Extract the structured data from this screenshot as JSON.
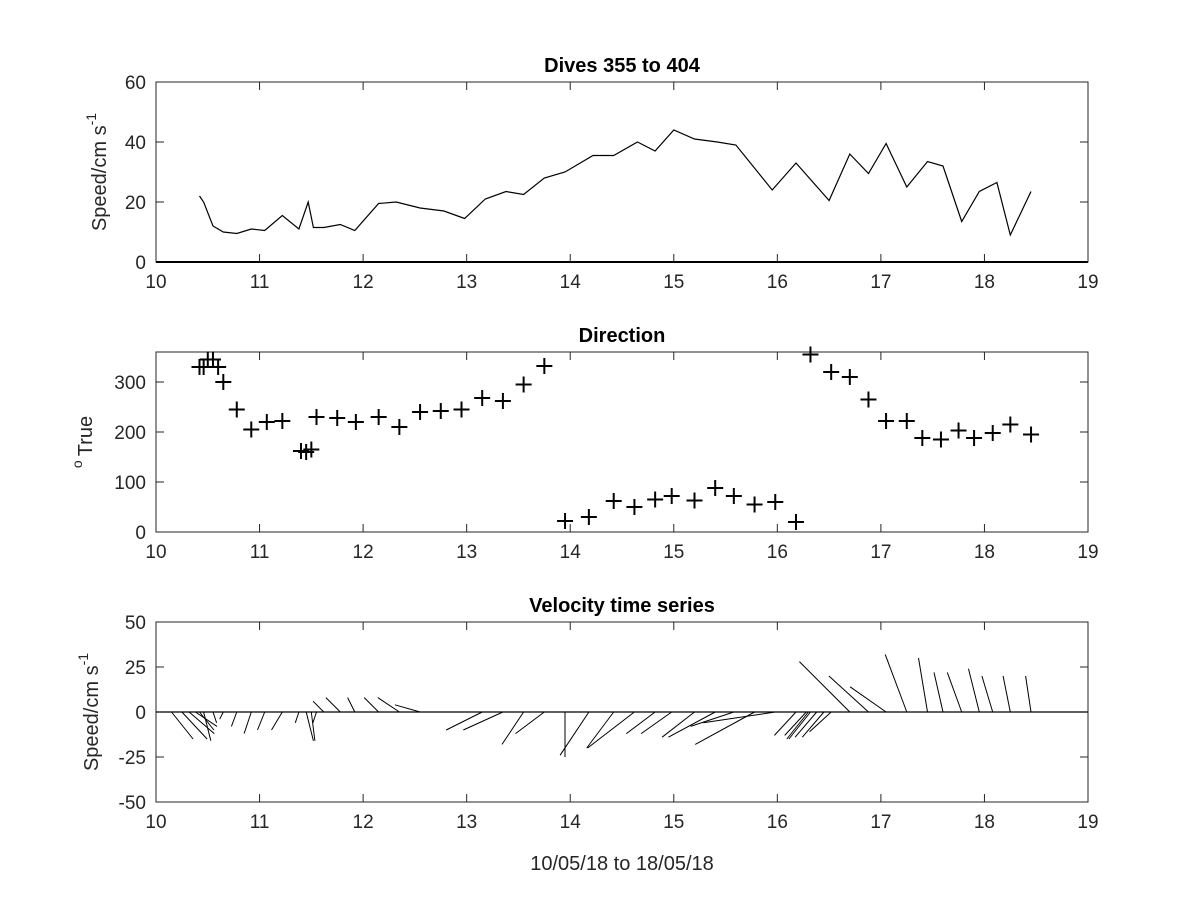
{
  "chart_data": [
    {
      "type": "line",
      "title": "Dives 355 to 404",
      "xlabel": "",
      "ylabel": "Speed/cm s",
      "ylabel_superscript": "-1",
      "xlim": [
        10,
        19
      ],
      "ylim": [
        0,
        60
      ],
      "xticks": [
        "10",
        "11",
        "12",
        "13",
        "14",
        "15",
        "16",
        "17",
        "18",
        "19"
      ],
      "yticks": [
        "0",
        "20",
        "40",
        "60"
      ],
      "grid": false,
      "series": [
        {
          "x": [
            10.42,
            10.46,
            10.55,
            10.65,
            10.78,
            10.92,
            11.05,
            11.22,
            11.38,
            11.47,
            11.52,
            11.62,
            11.78,
            11.92,
            12.15,
            12.32,
            12.55,
            12.78,
            12.98,
            13.18,
            13.38,
            13.55,
            13.75,
            13.95,
            14.22,
            14.42,
            14.65,
            14.82,
            15.0,
            15.2,
            15.42,
            15.6,
            15.95,
            16.18,
            16.5,
            16.7,
            16.88,
            17.05,
            17.25,
            17.45,
            17.6,
            17.78,
            17.95,
            18.12,
            18.25,
            18.45
          ],
          "y": [
            22,
            20,
            12,
            10,
            9.5,
            11,
            10.5,
            15.5,
            11,
            20,
            11.5,
            11.5,
            12.5,
            10.5,
            19.5,
            20,
            18,
            17,
            14.5,
            21,
            23.5,
            22.5,
            28,
            30,
            35.5,
            35.5,
            40,
            37,
            44,
            41,
            40,
            39,
            24,
            33,
            20.5,
            36,
            29.5,
            39.5,
            25,
            33.5,
            32,
            13.5,
            23.5,
            26.5,
            9,
            23.5
          ]
        }
      ]
    },
    {
      "type": "scatter",
      "title": "Direction",
      "xlabel": "",
      "ylabel": "True",
      "ylabel_superscript": "o",
      "xlim": [
        10,
        19
      ],
      "ylim": [
        0,
        360
      ],
      "xticks": [
        "10",
        "11",
        "12",
        "13",
        "14",
        "15",
        "16",
        "17",
        "18",
        "19"
      ],
      "yticks": [
        "0",
        "100",
        "200",
        "300"
      ],
      "marker": "+",
      "grid": false,
      "series": [
        {
          "x": [
            10.42,
            10.46,
            10.5,
            10.55,
            10.6,
            10.65,
            10.78,
            10.92,
            11.07,
            11.22,
            11.4,
            11.45,
            11.5,
            11.55,
            11.75,
            11.93,
            12.15,
            12.35,
            12.55,
            12.75,
            12.95,
            13.15,
            13.35,
            13.55,
            13.75,
            13.95,
            14.18,
            14.42,
            14.62,
            14.82,
            14.98,
            15.2,
            15.4,
            15.58,
            15.78,
            15.98,
            16.18,
            16.32,
            16.52,
            16.7,
            16.88,
            17.05,
            17.25,
            17.4,
            17.58,
            17.75,
            17.9,
            18.08,
            18.25,
            18.45
          ],
          "y": [
            330,
            330,
            345,
            345,
            330,
            300,
            245,
            205,
            220,
            222,
            162,
            160,
            165,
            230,
            228,
            220,
            230,
            210,
            240,
            242,
            245,
            268,
            262,
            295,
            332,
            22,
            30,
            62,
            50,
            65,
            72,
            63,
            88,
            72,
            55,
            60,
            20,
            355,
            320,
            310,
            265,
            222,
            222,
            188,
            185,
            203,
            188,
            198,
            215,
            195
          ]
        }
      ]
    },
    {
      "type": "line",
      "subtype": "stick-plot",
      "title": "Velocity time series",
      "xlabel": "10/05/18 to 18/05/18",
      "ylabel": "Speed/cm s",
      "ylabel_superscript": "-1",
      "xlim": [
        10,
        19
      ],
      "ylim": [
        -50,
        50
      ],
      "xticks": [
        "10",
        "11",
        "12",
        "13",
        "14",
        "15",
        "16",
        "17",
        "18",
        "19"
      ],
      "yticks": [
        "-50",
        "-25",
        "0",
        "25",
        "50"
      ],
      "grid": false,
      "sticks": {
        "x": [
          10.15,
          10.25,
          10.32,
          10.38,
          10.42,
          10.46,
          10.55,
          10.65,
          10.78,
          10.92,
          11.05,
          11.22,
          11.38,
          11.45,
          11.5,
          11.55,
          11.62,
          11.78,
          11.92,
          12.15,
          12.35,
          12.55,
          12.75,
          12.95,
          13.15,
          13.35,
          13.55,
          13.75,
          13.95,
          14.18,
          14.42,
          14.62,
          14.82,
          14.98,
          15.2,
          15.4,
          15.58,
          15.78,
          15.98,
          16.18,
          16.28,
          16.3,
          16.32,
          16.38,
          16.45,
          16.52,
          16.7,
          16.88,
          17.05,
          17.25,
          17.45,
          17.6,
          17.78,
          17.95,
          18.08,
          18.25,
          18.45
        ],
        "u": [
          12,
          14,
          14,
          12,
          8,
          4,
          2,
          -2,
          -3,
          -4,
          -4,
          -6,
          -2,
          4,
          2,
          -2,
          -6,
          -8,
          -4,
          -8,
          -12,
          -14,
          -14,
          -15,
          -20,
          -22,
          -12,
          -16,
          0,
          -16,
          -15,
          -26,
          -16,
          -17,
          -18,
          -26,
          -24,
          -33,
          -40,
          -12,
          -12,
          -12,
          -12,
          -12,
          -12,
          -12,
          -28,
          -22,
          -20,
          -12,
          -5,
          -5,
          -8,
          -6,
          -6,
          -4,
          -3
        ],
        "v": [
          -15,
          -15,
          -12,
          -8,
          -10,
          -16,
          -6,
          -4,
          -8,
          -12,
          -10,
          -10,
          -6,
          -16,
          -16,
          -6,
          6,
          8,
          8,
          8,
          8,
          4,
          0,
          0,
          -10,
          -10,
          -18,
          -12,
          -25,
          -24,
          -20,
          -20,
          -12,
          -12,
          -14,
          -14,
          -8,
          -18,
          -6,
          -13,
          -13,
          -15,
          -15,
          -14,
          -14,
          -11,
          28,
          20,
          14,
          32,
          30,
          22,
          22,
          24,
          20,
          20,
          20
        ]
      }
    }
  ]
}
